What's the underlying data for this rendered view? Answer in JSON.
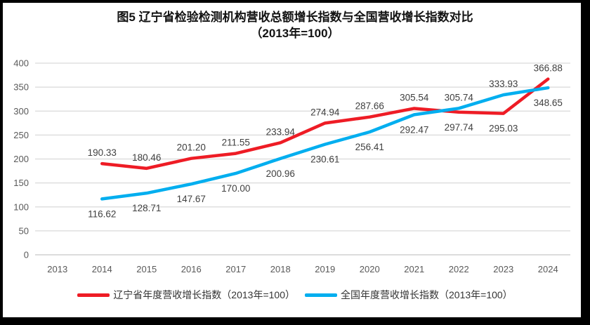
{
  "title": {
    "line1": "图5  辽宁省检验检测机构营收总额增长指数与全国营收增长指数对比",
    "line2": "（2013年=100）"
  },
  "chart_data": {
    "type": "line",
    "categories": [
      "2013",
      "2014",
      "2015",
      "2016",
      "2017",
      "2018",
      "2019",
      "2020",
      "2021",
      "2022",
      "2023",
      "2024"
    ],
    "ylim": [
      0,
      400
    ],
    "ytick_step": 50,
    "grid": true,
    "legend_position": "bottom",
    "background": "#ffffff",
    "gridline_color": "#d9d9d9",
    "axis_label_color": "#595959",
    "data_label_color": "#404040",
    "series": [
      {
        "name": "辽宁省年度营收增长指数（2013年=100）",
        "color": "#ee1c25",
        "values": [
          null,
          190.33,
          180.46,
          201.2,
          211.55,
          233.94,
          274.94,
          287.66,
          305.54,
          297.74,
          295.03,
          366.88
        ],
        "label_positions": [
          null,
          "above",
          "above",
          "above",
          "above",
          "above",
          "above",
          "above",
          "above",
          "below",
          "below",
          "above"
        ]
      },
      {
        "name": "全国年度营收增长指数（2013年=100）",
        "color": "#00aeef",
        "values": [
          null,
          116.62,
          128.71,
          147.67,
          170.0,
          200.96,
          230.61,
          256.41,
          292.47,
          305.74,
          333.93,
          348.65
        ],
        "label_positions": [
          null,
          "below",
          "below",
          "below",
          "below",
          "below",
          "below",
          "below",
          "below",
          "above",
          "above",
          "below"
        ]
      }
    ]
  }
}
